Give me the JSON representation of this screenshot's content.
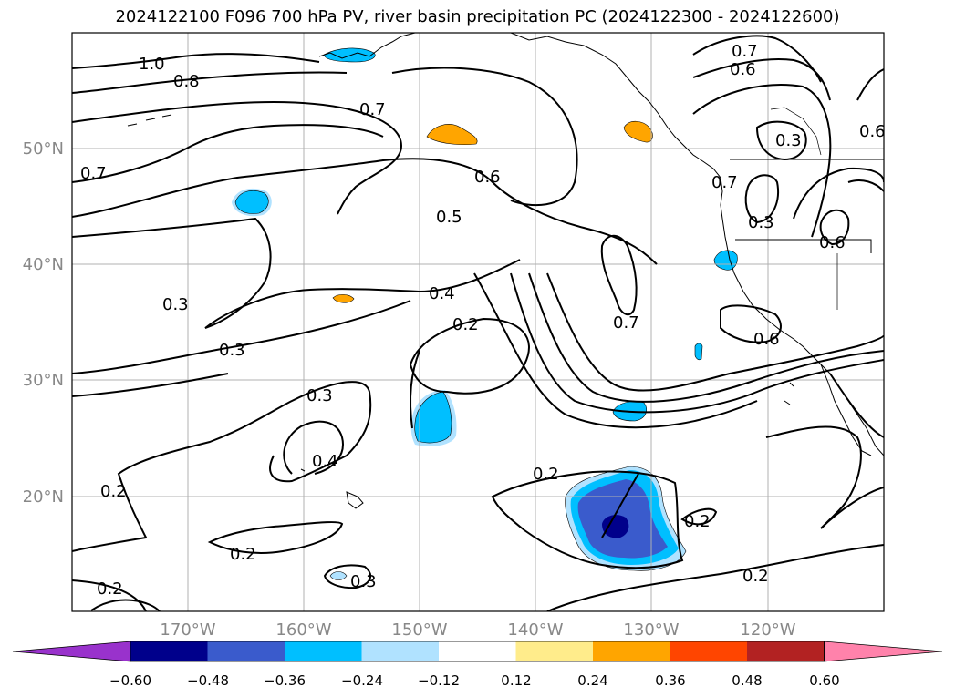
{
  "title": "2024122100 F096 700 hPa PV, river basin precipitation PC (2024122300 - 2024122600)",
  "lat_labels": [
    "50°N",
    "40°N",
    "30°N",
    "20°N"
  ],
  "lon_labels": [
    "170°W",
    "160°W",
    "150°W",
    "140°W",
    "130°W",
    "120°W"
  ],
  "contour_labels": [
    "1.0",
    "0.8",
    "0.7",
    "0.7",
    "0.6",
    "0.6",
    "0.3",
    "0.6",
    "0.6",
    "0.7",
    "0.5",
    "0.4",
    "0.2",
    "0.3",
    "0.3",
    "0.7",
    "0.3",
    "0.6",
    "0.3",
    "0.4",
    "0.2",
    "0.2",
    "0.2",
    "0.2",
    "0.2",
    "0.3",
    "0.2",
    "0.7"
  ],
  "colorbar": {
    "ticks": [
      "−0.60",
      "−0.48",
      "−0.36",
      "−0.24",
      "−0.12",
      "0.12",
      "0.24",
      "0.36",
      "0.48",
      "0.60"
    ],
    "colors": [
      "#9932cc",
      "#00008b",
      "#3a5bcc",
      "#00bfff",
      "#b0e2ff",
      "#ffffff",
      "#ffec8b",
      "#ffa500",
      "#ff4500",
      "#b22222",
      "#ff82ab"
    ]
  }
}
